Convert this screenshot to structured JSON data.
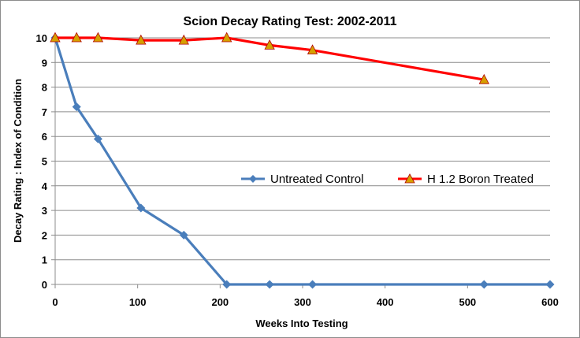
{
  "chart_data": {
    "type": "line",
    "title": "Scion Decay Rating Test: 2002-2011",
    "xlabel": "Weeks Into Testing",
    "ylabel": "Decay Rating : Index of Condition",
    "xlim": [
      0,
      600
    ],
    "ylim": [
      0,
      10
    ],
    "xticks": [
      "0",
      "100",
      "200",
      "300",
      "400",
      "500",
      "600"
    ],
    "yticks": [
      "0",
      "1",
      "2",
      "3",
      "4",
      "5",
      "6",
      "7",
      "8",
      "9",
      "10"
    ],
    "grid": "horizontal",
    "legend_position": "right, mid-plot",
    "series": [
      {
        "name": "Untreated Control",
        "color": "#4a7ebb",
        "marker": "diamond",
        "x": [
          0,
          26,
          52,
          104,
          156,
          208,
          260,
          312,
          520,
          600
        ],
        "y": [
          10,
          7.2,
          5.9,
          3.1,
          2.0,
          0,
          0,
          0,
          0,
          0
        ]
      },
      {
        "name": "H 1.2 Boron Treated",
        "color": "#ff0000",
        "marker": "triangle",
        "marker_fill": "#d6a000",
        "x": [
          0,
          26,
          52,
          104,
          156,
          208,
          260,
          312,
          520
        ],
        "y": [
          10,
          10,
          10,
          9.9,
          9.9,
          10,
          9.7,
          9.5,
          8.3
        ]
      }
    ]
  }
}
